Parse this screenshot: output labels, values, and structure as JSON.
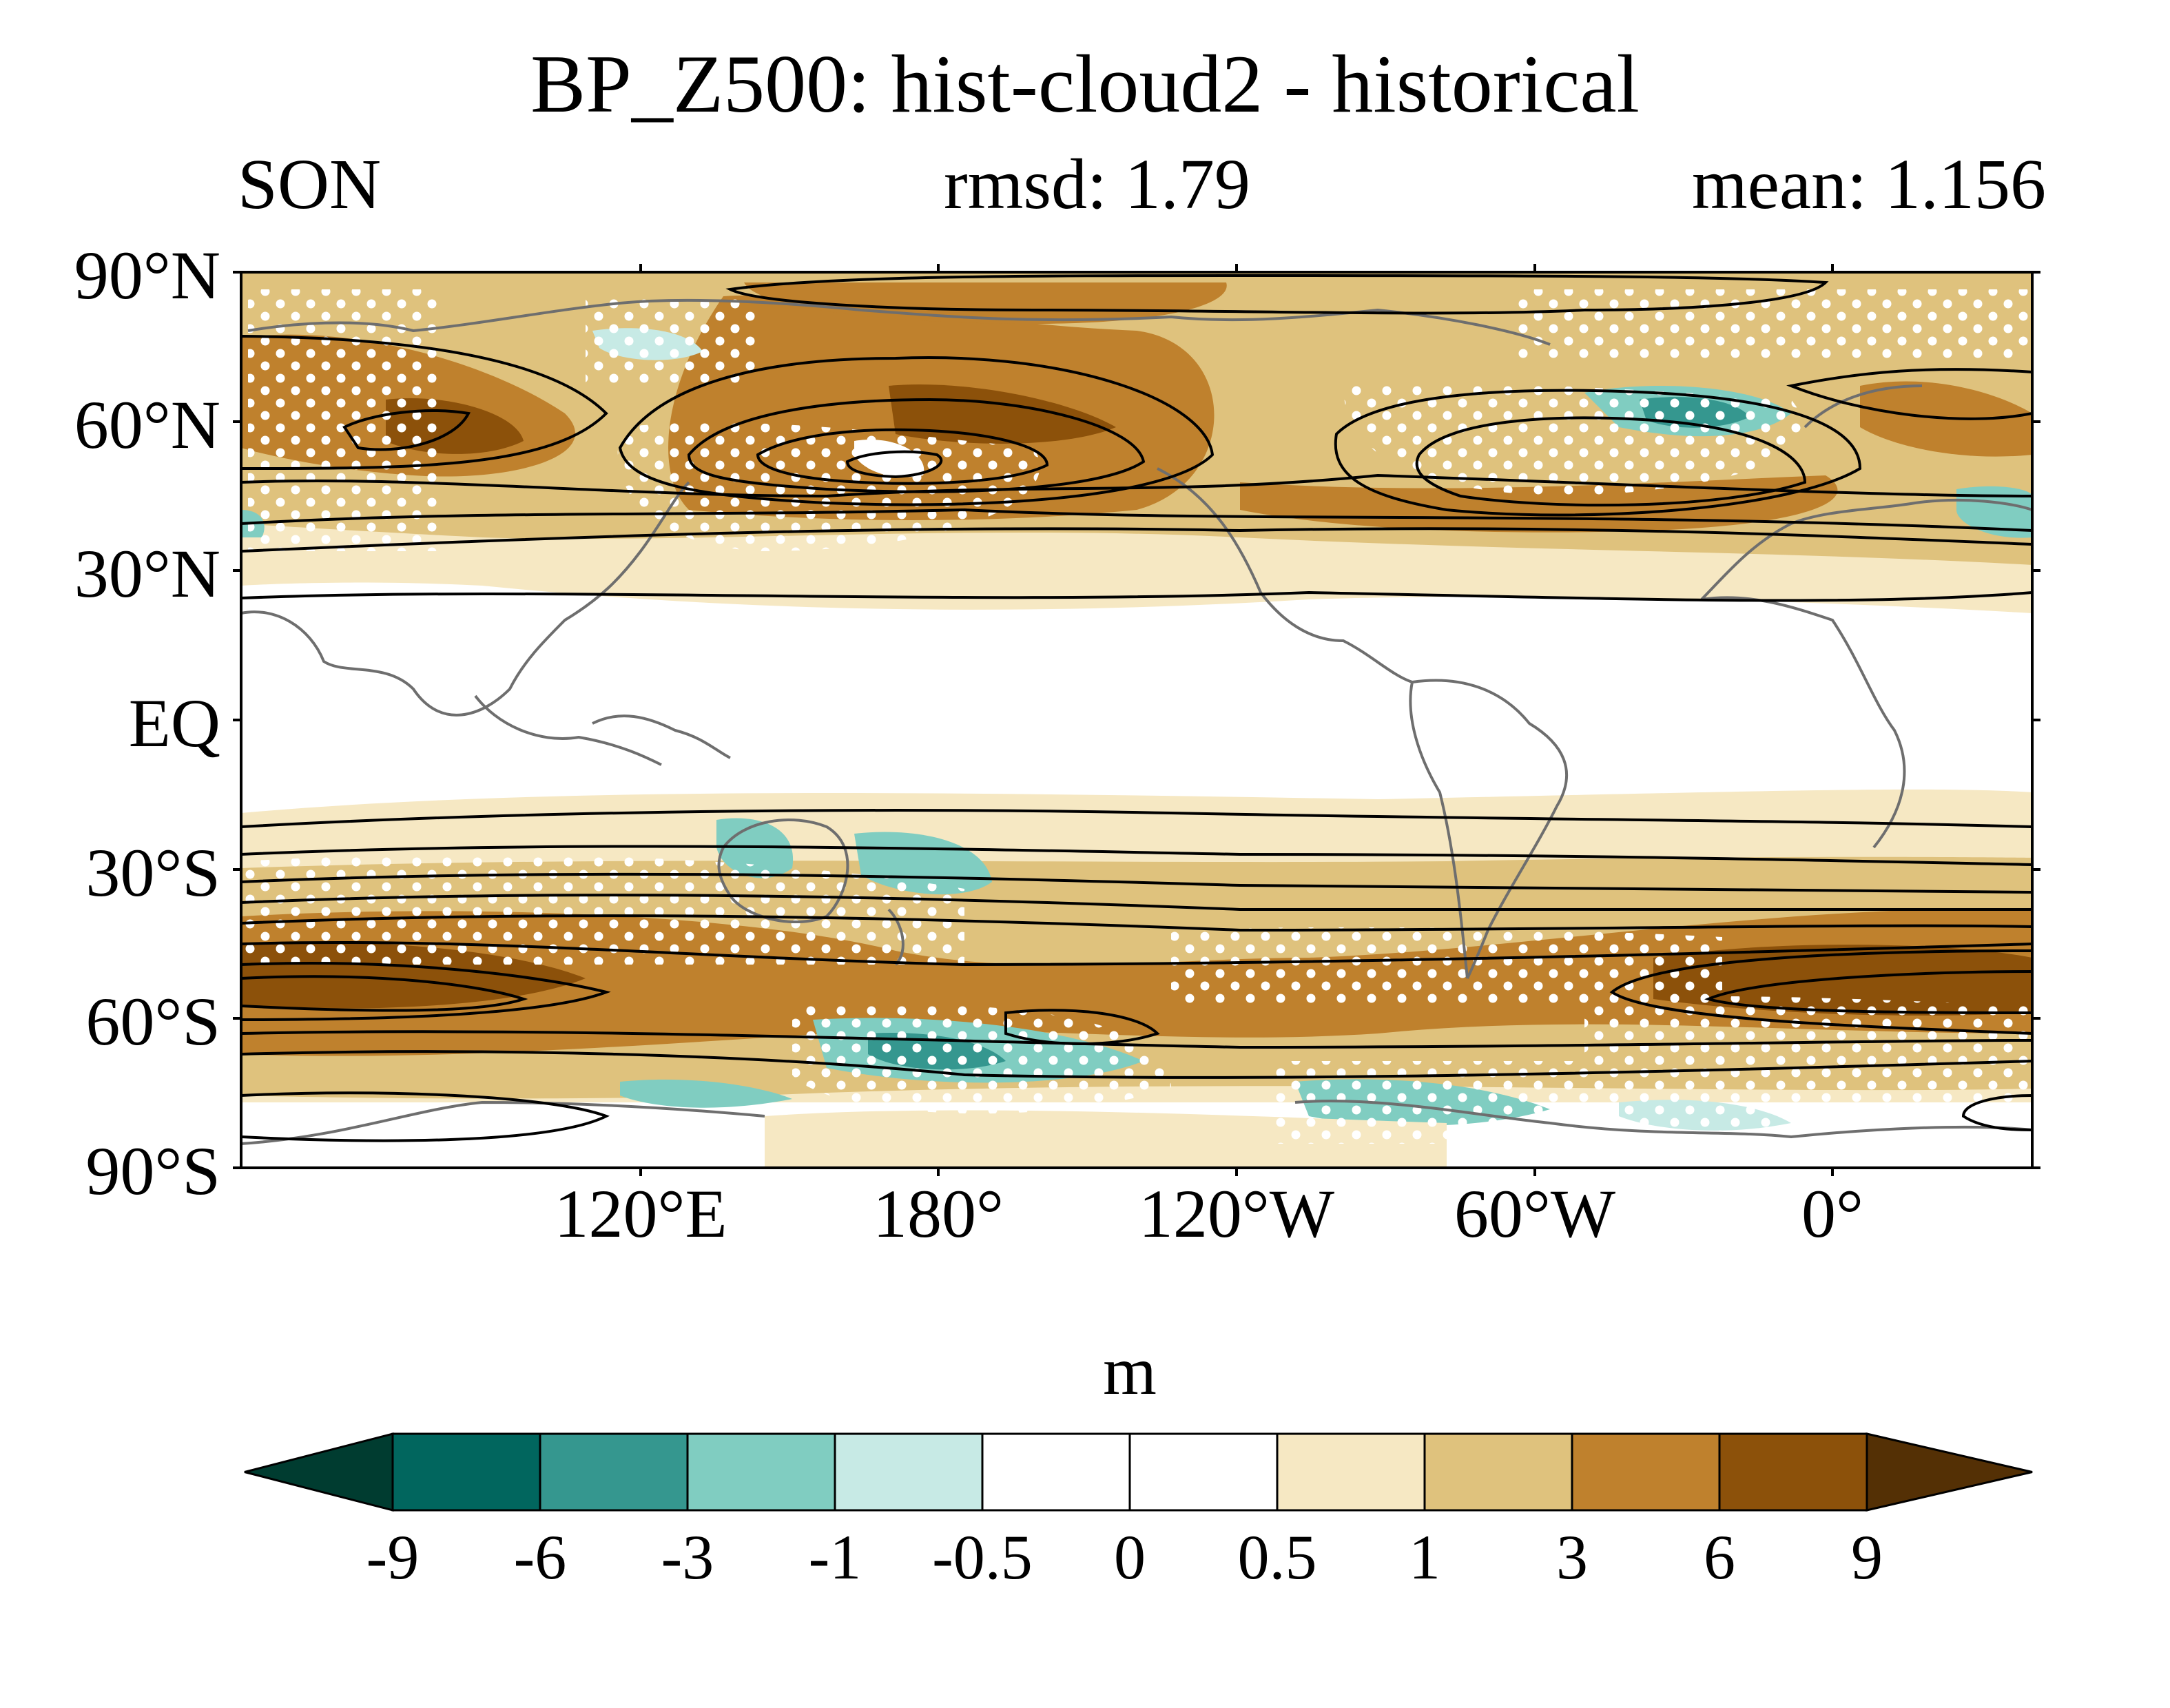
{
  "title": "BP_Z500: hist-cloud2 - historical",
  "season": "SON",
  "rmsd": "rmsd: 1.79",
  "mean": "mean: 1.156",
  "lat_labels": [
    "90°N",
    "60°N",
    "30°N",
    "EQ",
    "30°S",
    "60°S",
    "90°S"
  ],
  "lon_labels": [
    "120°E",
    "180°",
    "120°W",
    "60°W",
    "0°"
  ],
  "colorbar": {
    "unit": "m",
    "levels": [
      "-9",
      "-6",
      "-3",
      "-1",
      "-0.5",
      "0",
      "0.5",
      "1",
      "3",
      "6",
      "9"
    ],
    "colors": [
      "#003c30",
      "#01665e",
      "#35978f",
      "#80cdc1",
      "#c7eae5",
      "#ffffff",
      "#ffffff",
      "#f6e8c3",
      "#dfc27d",
      "#bf812d",
      "#8c510a",
      "#543005"
    ]
  }
}
